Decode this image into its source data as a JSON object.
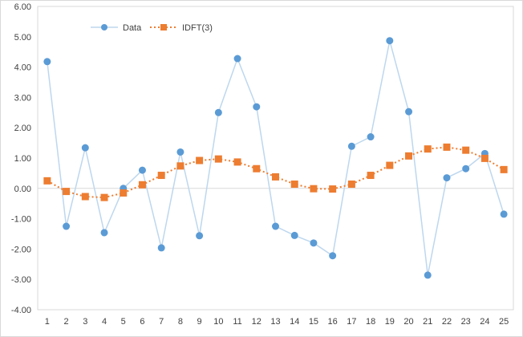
{
  "chart_data": {
    "type": "line",
    "x": [
      1,
      2,
      3,
      4,
      5,
      6,
      7,
      8,
      9,
      10,
      11,
      12,
      13,
      14,
      15,
      16,
      17,
      18,
      19,
      20,
      21,
      22,
      23,
      24,
      25
    ],
    "xlim": [
      1,
      25
    ],
    "ylim": [
      -4,
      6
    ],
    "yticks": [
      "-4.00",
      "-3.00",
      "-2.00",
      "-1.00",
      "0.00",
      "1.00",
      "2.00",
      "3.00",
      "4.00",
      "5.00",
      "6.00"
    ],
    "grid": false,
    "legend_position": "top-left",
    "series": [
      {
        "name": "Data",
        "color": "#5b9bd5",
        "line_color": "#bdd7ee",
        "marker": "circle",
        "line_style": "solid",
        "values": [
          4.18,
          -1.25,
          1.34,
          -1.46,
          0.0,
          0.6,
          -1.96,
          1.2,
          -1.56,
          2.5,
          4.28,
          2.69,
          -1.25,
          -1.55,
          -1.8,
          -2.22,
          1.39,
          1.7,
          4.87,
          2.53,
          -2.86,
          0.35,
          0.65,
          1.15,
          -0.85
        ]
      },
      {
        "name": "IDFT(3)",
        "color": "#ed7d31",
        "line_color": "#ed7d31",
        "marker": "square",
        "line_style": "dotted",
        "values": [
          0.25,
          -0.1,
          -0.27,
          -0.3,
          -0.15,
          0.12,
          0.43,
          0.74,
          0.92,
          0.97,
          0.87,
          0.65,
          0.38,
          0.14,
          -0.01,
          -0.02,
          0.14,
          0.43,
          0.76,
          1.07,
          1.3,
          1.36,
          1.26,
          0.99,
          0.62
        ]
      }
    ]
  }
}
